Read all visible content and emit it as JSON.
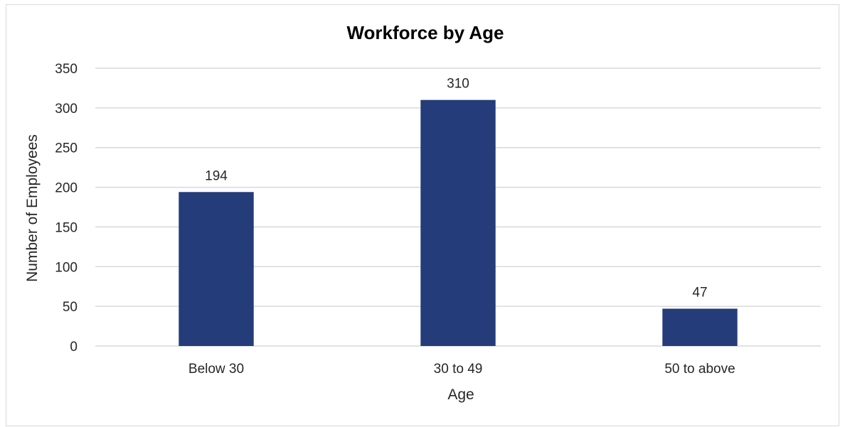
{
  "chart_data": {
    "type": "bar",
    "title": "Workforce by Age",
    "xlabel": "Age",
    "ylabel": "Number of Employees",
    "categories": [
      "Below 30",
      "30 to 49",
      "50 to above"
    ],
    "values": [
      194,
      310,
      47
    ],
    "data_labels": [
      "194",
      "310",
      "47"
    ],
    "ylim": [
      0,
      350
    ],
    "yticks": [
      0,
      50,
      100,
      150,
      200,
      250,
      300,
      350
    ],
    "ytick_labels": [
      "0",
      "50",
      "100",
      "150",
      "200",
      "250",
      "300",
      "350"
    ],
    "grid": true,
    "legend": "none",
    "bar_color": "#243c7a",
    "grid_color": "#d9d9d9"
  }
}
